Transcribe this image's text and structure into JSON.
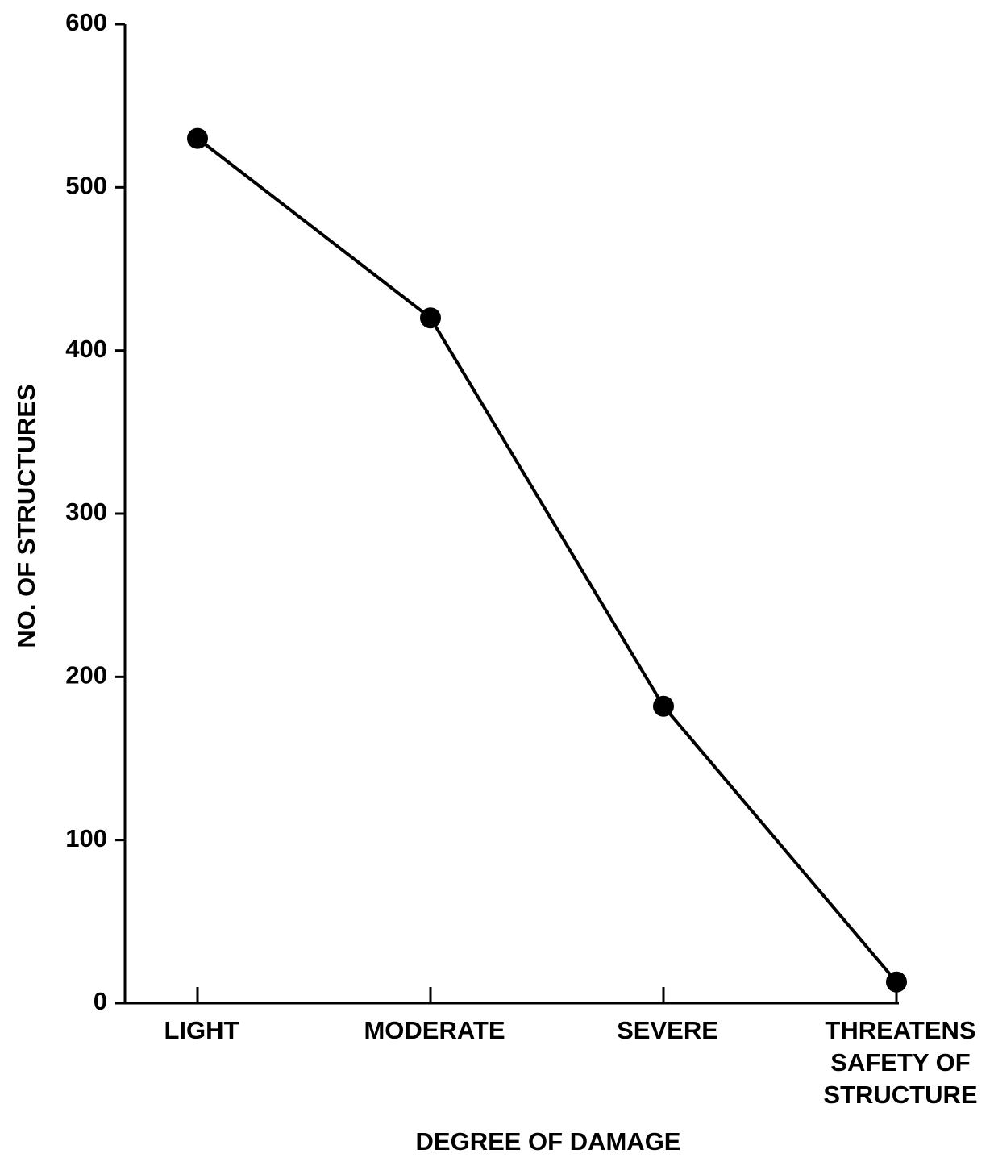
{
  "chart_data": {
    "type": "line",
    "x_label": "DEGREE OF DAMAGE",
    "y_label": "NO. OF STRUCTURES",
    "categories": [
      "LIGHT",
      "MODERATE",
      "SEVERE",
      "THREATENS SAFETY OF STRUCTURE"
    ],
    "values": [
      530,
      420,
      182,
      13
    ],
    "color": "#000000",
    "ylim": [
      0,
      600
    ],
    "yticks": [
      0,
      100,
      200,
      300,
      400,
      500,
      600
    ],
    "grid": false
  }
}
